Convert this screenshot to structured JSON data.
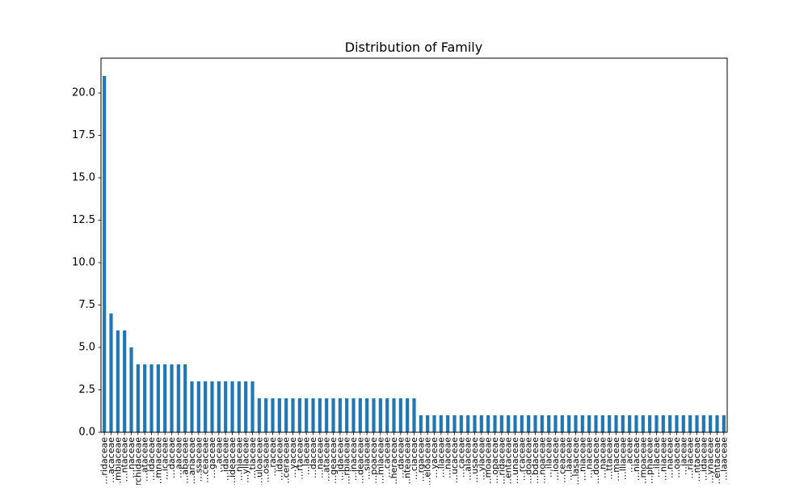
{
  "chart_data": {
    "type": "bar",
    "title": "Distribution of Family",
    "xlabel": "",
    "ylabel": "",
    "ylim": [
      0,
      22.05
    ],
    "yticks": [
      "0.0",
      "2.5",
      "5.0",
      "7.5",
      "10.0",
      "12.5",
      "15.0",
      "17.5",
      "20.0"
    ],
    "grid": false,
    "legend": "none",
    "bar_color": "#1f77b4",
    "categories": [
      "…ridaceae",
      "…acaceae",
      "…mbiaceae",
      "…ntaceae",
      "…naceae",
      "…rchidaceae",
      "…ataceae",
      "…idaceae",
      "…mnaceae",
      "…icaceae",
      "…daceae",
      "…aaceae",
      "…abaceae",
      "…ariaceae",
      "…ssaceae",
      "…ceaceae",
      "…gaceae",
      "…aceae",
      "…idaceae",
      "…ideaceae",
      "…niaceae",
      "…yllaceae",
      "…tiaceae",
      "…uloaceae",
      "…osaceae",
      "…raceae",
      "…idaceae",
      "…ceraceae",
      "…yaceae",
      "…rtaceae",
      "…laceae",
      "…daceae",
      "…naceae",
      "…ataceae",
      "…geaceae",
      "…idaceae",
      "…rbiaceae",
      "…inaceae",
      "…deaceae",
      "…siaceae",
      "…poaceae",
      "…mlaceae",
      "…caceae",
      "…heraceae",
      "…daceae",
      "…nteaceae",
      "…ciaceae",
      "…rgaceae",
      "…eloaceae",
      "…yaceae",
      "…llaceae",
      "…naceae",
      "…ucaceae",
      "…caceae",
      "…alaceae",
      "…usaceae",
      "…ylaceae",
      "…moaceae",
      "…opaceae",
      "…ridaceae",
      "…entaceae",
      "…unaceae",
      "…rcaceae",
      "…doaceae",
      "…bdaceae",
      "…noaceae",
      "…ilaceae",
      "…ioaceae",
      "…ceaceae",
      "…laaceae",
      "…lasaceae",
      "…niaceae",
      "…naceae",
      "…doaceae",
      "…naceae",
      "…ttaceae",
      "…maceae",
      "…lliaceae",
      "…aceae",
      "…niaceae",
      "…moaceae",
      "…phaceae",
      "…ilaceae",
      "…niaceae",
      "…naceae",
      "…oaceae",
      "…iaceae",
      "…rlaceae",
      "…ntaceae",
      "…idaceae",
      "…ynaceae",
      "…entaceae",
      "…laaceae"
    ],
    "values": [
      21,
      7,
      6,
      6,
      5,
      4,
      4,
      4,
      4,
      4,
      4,
      4,
      4,
      3,
      3,
      3,
      3,
      3,
      3,
      3,
      3,
      3,
      3,
      2,
      2,
      2,
      2,
      2,
      2,
      2,
      2,
      2,
      2,
      2,
      2,
      2,
      2,
      2,
      2,
      2,
      2,
      2,
      2,
      2,
      2,
      2,
      2,
      1,
      1,
      1,
      1,
      1,
      1,
      1,
      1,
      1,
      1,
      1,
      1,
      1,
      1,
      1,
      1,
      1,
      1,
      1,
      1,
      1,
      1,
      1,
      1,
      1,
      1,
      1,
      1,
      1,
      1,
      1,
      1,
      1,
      1,
      1,
      1,
      1,
      1,
      1,
      1,
      1,
      1,
      1,
      1,
      1,
      1
    ]
  }
}
